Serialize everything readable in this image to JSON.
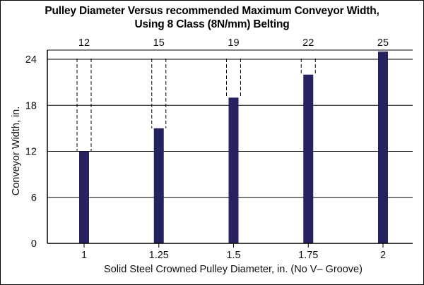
{
  "chart_data": {
    "type": "bar",
    "title": "Pulley Diameter Versus recommended Maximum Conveyor Width,",
    "subtitle": "Using 8 Class (8N/mm) Belting",
    "xlabel": "Solid Steel Crowned Pulley Diameter, in. (No V– Groove)",
    "ylabel": "Conveyor Width, in.",
    "categories": [
      "1",
      "1.25",
      "1.5",
      "1.75",
      "2"
    ],
    "values": [
      12,
      15,
      19,
      22,
      25
    ],
    "value_labels": [
      "12",
      "15",
      "19",
      "22",
      "25"
    ],
    "yticks": [
      "0",
      "6",
      "12",
      "18",
      "24"
    ],
    "ylim": [
      0,
      25
    ],
    "grid": true,
    "bar_color": "#25225f"
  }
}
